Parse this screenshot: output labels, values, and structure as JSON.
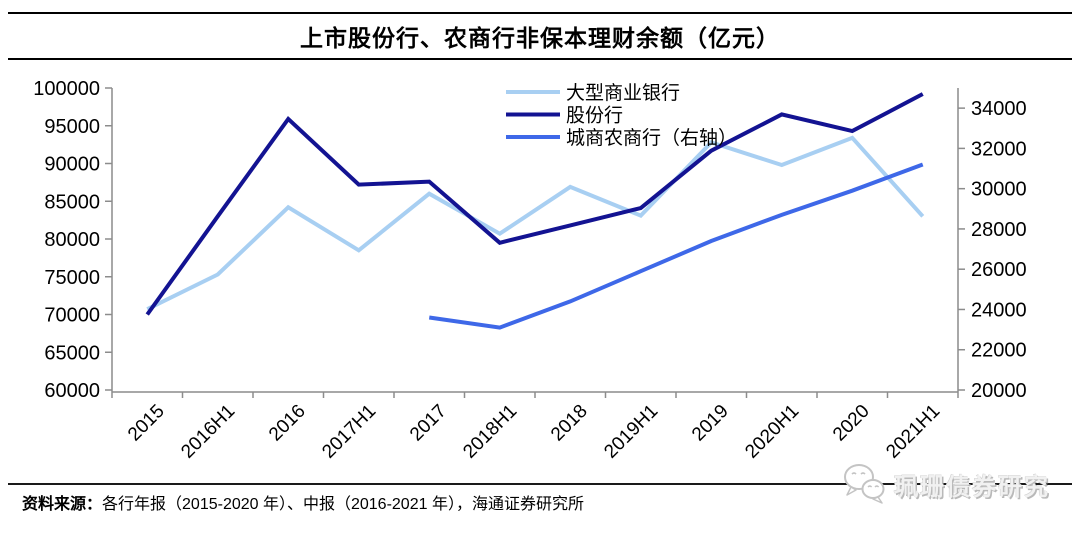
{
  "title": "上市股份行、农商行非保本理财余额（亿元）",
  "footer": {
    "source_label": "资料来源：",
    "source_text": "各行年报（2015-2020 年）、中报（2016-2021 年），海通证券研究所"
  },
  "watermark": {
    "text": "珮珊债券研究",
    "icon": "wechat-chat-bubbles-icon"
  },
  "colors": {
    "light_blue": "#A8CFF2",
    "navy": "#131392",
    "royal_blue": "#3E68E8",
    "axis": "#8C8C8C",
    "text": "#000000",
    "watermark_gray": "#C4C4C4"
  },
  "chart_data": {
    "type": "line",
    "title": "上市股份行、农商行非保本理财余额（亿元）",
    "categories": [
      "2015",
      "2016H1",
      "2016",
      "2017H1",
      "2017",
      "2018H1",
      "2018",
      "2019H1",
      "2019",
      "2020H1",
      "2020",
      "2021H1"
    ],
    "series": [
      {
        "name": "大型商业银行",
        "axis": "left",
        "color_key": "light_blue",
        "values": [
          70700,
          75300,
          84200,
          78500,
          86000,
          80700,
          86900,
          83100,
          92800,
          89800,
          93400,
          83000
        ]
      },
      {
        "name": "股份行",
        "axis": "left",
        "color_key": "navy",
        "values": [
          70000,
          83000,
          95900,
          87200,
          87600,
          79500,
          81800,
          84100,
          91700,
          96500,
          94300,
          99200
        ]
      },
      {
        "name": "城商农商行（右轴）",
        "axis": "right",
        "color_key": "royal_blue",
        "values": [
          null,
          null,
          null,
          null,
          23600,
          23100,
          24400,
          25900,
          27400,
          28700,
          29900,
          31200
        ]
      }
    ],
    "left_axis": {
      "min": 60000,
      "max": 100000,
      "step": 5000
    },
    "right_axis": {
      "min": 20000,
      "max": 35000,
      "step": 2000,
      "last_label": 34000
    },
    "legend_position": "top-center",
    "grid": false
  }
}
